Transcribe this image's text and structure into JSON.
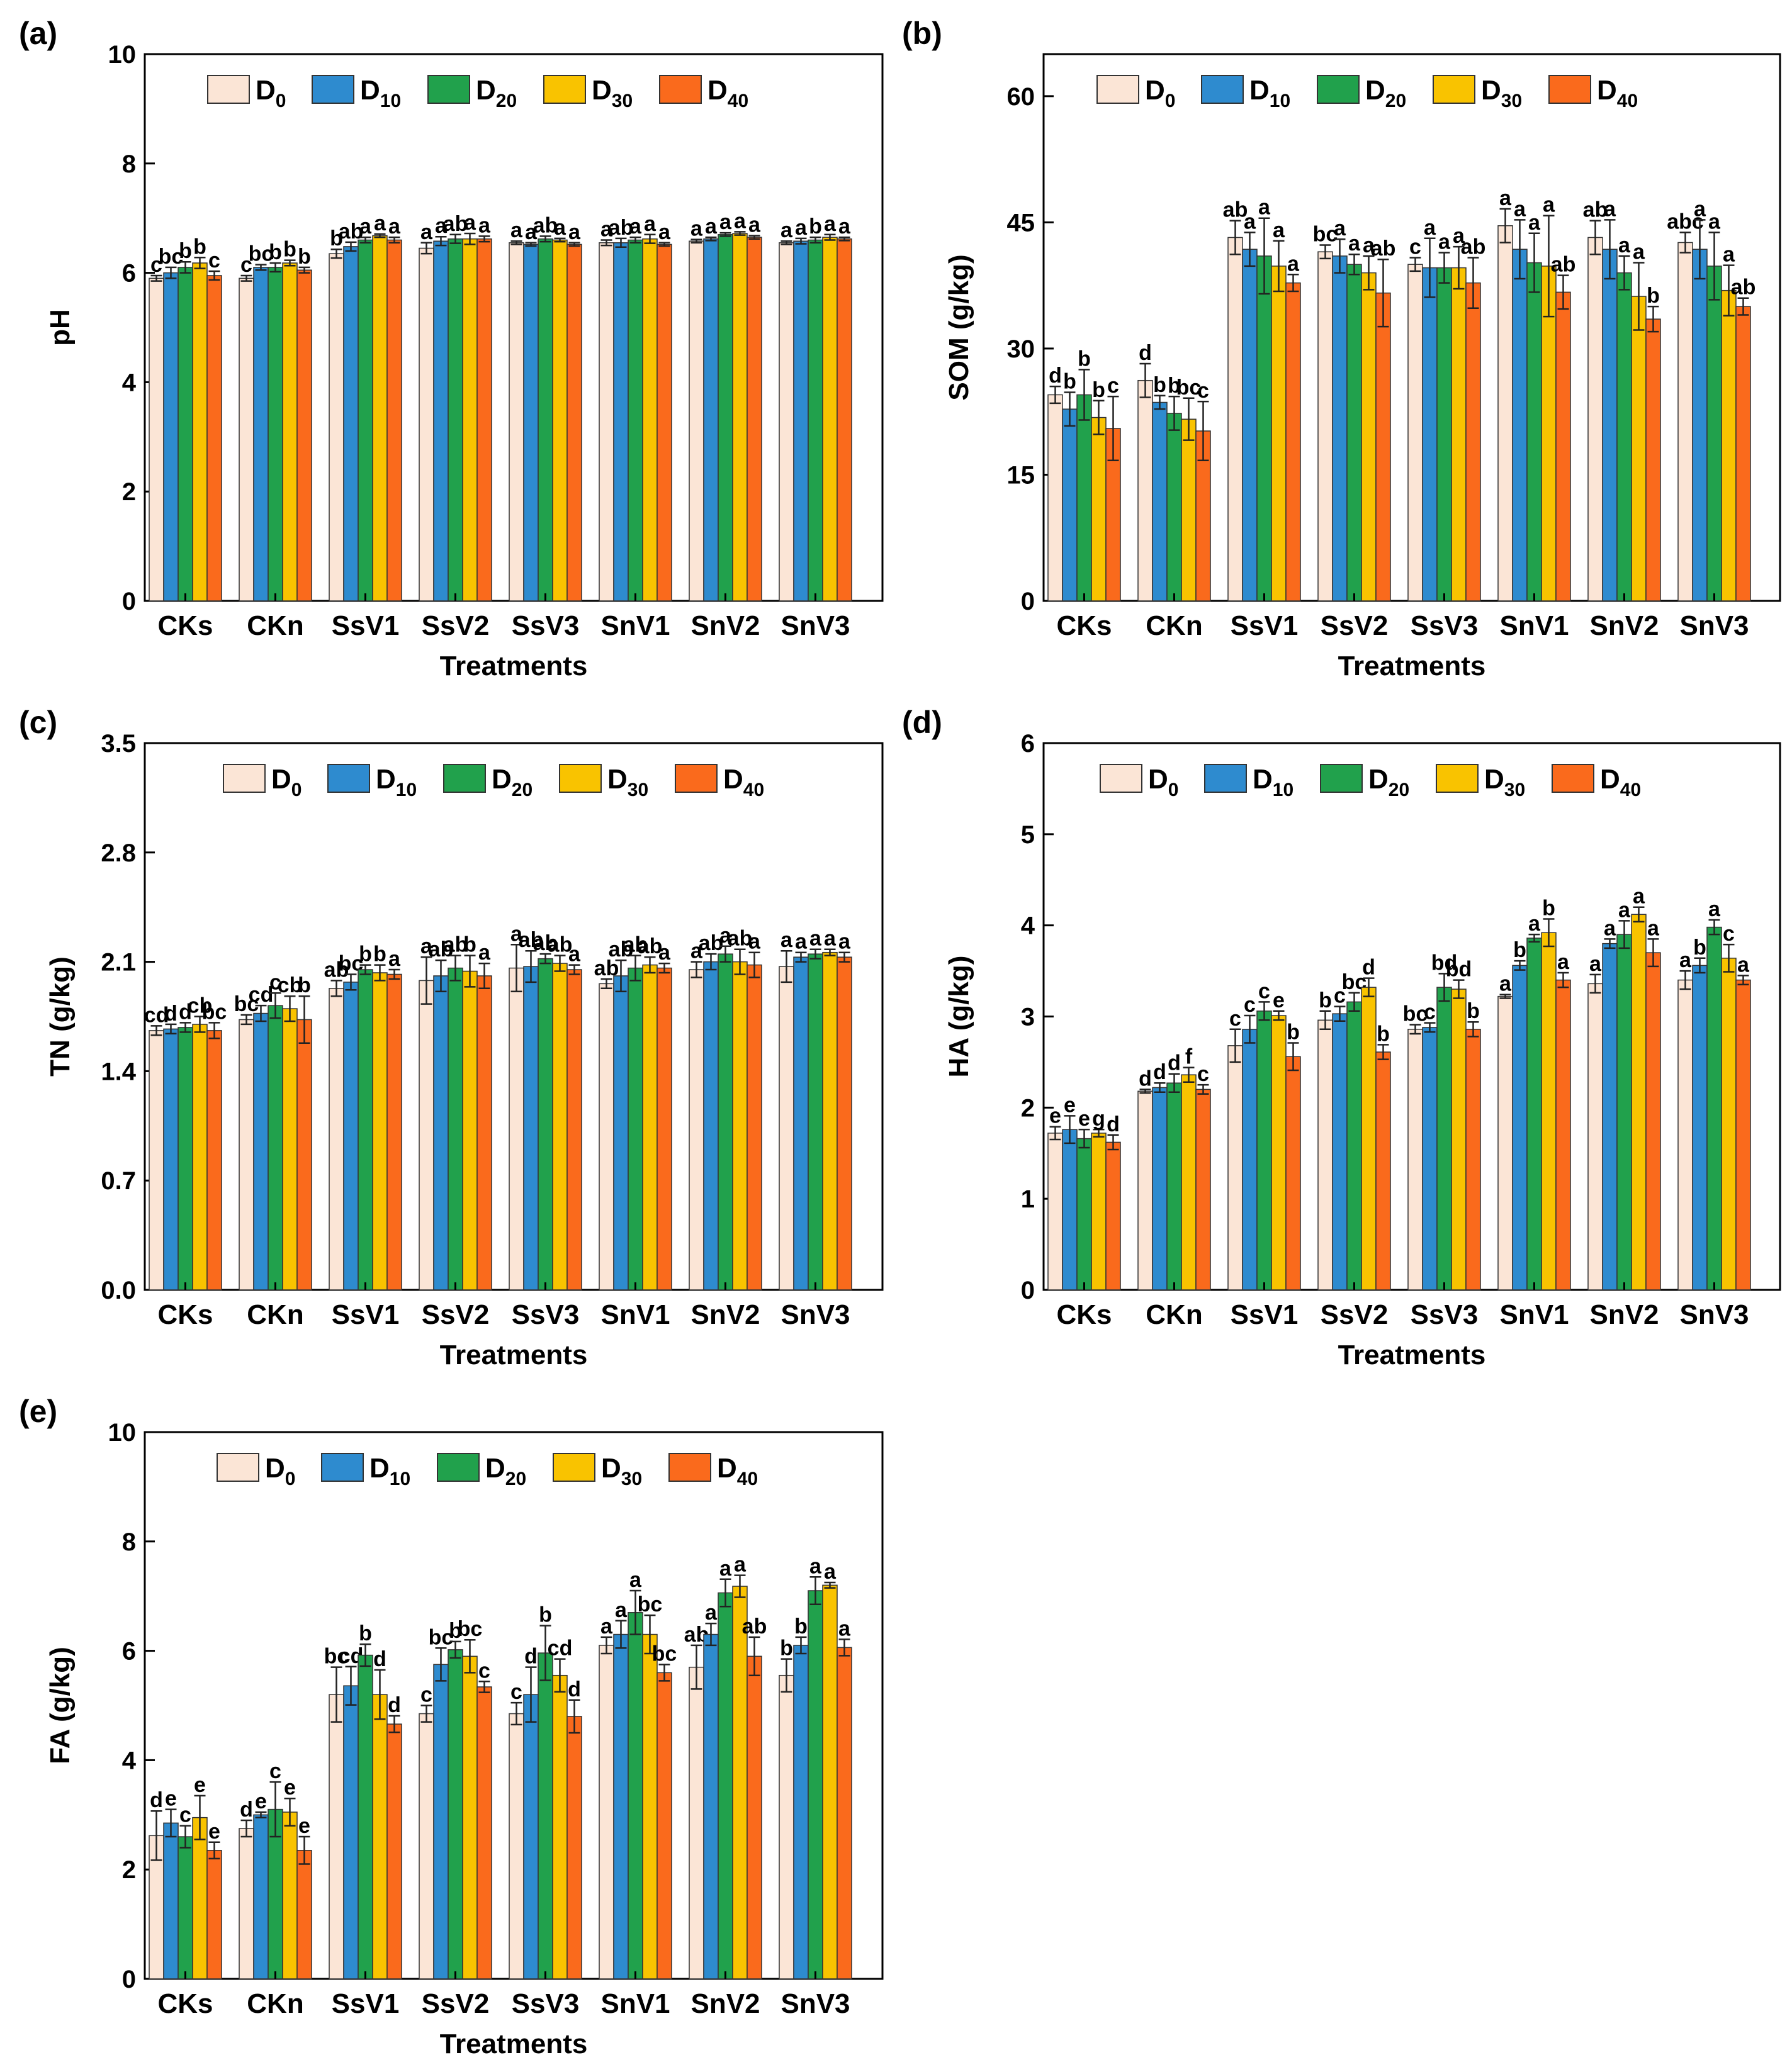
{
  "figure": {
    "categories": [
      "CKs",
      "CKn",
      "SsV1",
      "SsV2",
      "SsV3",
      "SnV1",
      "SnV2",
      "SnV3"
    ],
    "xlabel": "Treatments",
    "legend": [
      {
        "base": "D",
        "sub": "0"
      },
      {
        "base": "D",
        "sub": "10"
      },
      {
        "base": "D",
        "sub": "20"
      },
      {
        "base": "D",
        "sub": "30"
      },
      {
        "base": "D",
        "sub": "40"
      }
    ],
    "colors": [
      "#fbe5d6",
      "#2e8bcf",
      "#21a14c",
      "#f9c300",
      "#fa6a1c"
    ]
  },
  "chart_data": [
    {
      "id": "a",
      "label": "(a)",
      "type": "bar",
      "ylabel": "pH",
      "ylim": [
        0,
        10
      ],
      "yticks": [
        "0",
        "2",
        "4",
        "6",
        "8",
        "10"
      ],
      "series": [
        {
          "name": "D0",
          "values": [
            5.9,
            5.9,
            6.35,
            6.45,
            6.55,
            6.55,
            6.58,
            6.55
          ],
          "errors": [
            0.05,
            0.05,
            0.08,
            0.1,
            0.03,
            0.05,
            0.03,
            0.03
          ]
        },
        {
          "name": "D10",
          "values": [
            6.0,
            6.1,
            6.48,
            6.58,
            6.52,
            6.55,
            6.62,
            6.58
          ],
          "errors": [
            0.1,
            0.05,
            0.08,
            0.08,
            0.03,
            0.08,
            0.03,
            0.05
          ]
        },
        {
          "name": "D20",
          "values": [
            6.1,
            6.1,
            6.6,
            6.62,
            6.62,
            6.6,
            6.7,
            6.6
          ],
          "errors": [
            0.1,
            0.08,
            0.05,
            0.08,
            0.05,
            0.05,
            0.03,
            0.05
          ]
        },
        {
          "name": "D30",
          "values": [
            6.18,
            6.18,
            6.68,
            6.62,
            6.6,
            6.62,
            6.72,
            6.65
          ],
          "errors": [
            0.1,
            0.05,
            0.03,
            0.1,
            0.03,
            0.08,
            0.03,
            0.05
          ]
        },
        {
          "name": "D40",
          "values": [
            5.95,
            6.05,
            6.6,
            6.62,
            6.52,
            6.52,
            6.65,
            6.62
          ],
          "errors": [
            0.08,
            0.05,
            0.05,
            0.05,
            0.03,
            0.03,
            0.03,
            0.03
          ]
        }
      ],
      "letters": [
        [
          "c",
          "c",
          "b",
          "a",
          "a",
          "a",
          "a",
          "a"
        ],
        [
          "bc",
          "bc",
          "ab",
          "a",
          "a",
          "ab",
          "a",
          "a"
        ],
        [
          "b",
          "b",
          "a",
          "ab",
          "ab",
          "a",
          "a",
          "b"
        ],
        [
          "b",
          "b",
          "a",
          "a",
          "a",
          "a",
          "a",
          "a"
        ],
        [
          "c",
          "b",
          "a",
          "a",
          "a",
          "a",
          "a",
          "a"
        ]
      ]
    },
    {
      "id": "b",
      "label": "(b)",
      "type": "bar",
      "ylabel": "SOM (g/kg)",
      "ylim": [
        0,
        65
      ],
      "yticks": [
        "0",
        "15",
        "30",
        "45",
        "60"
      ],
      "series": [
        {
          "name": "D0",
          "values": [
            24.5,
            26.2,
            43.2,
            41.5,
            40.0,
            44.6,
            43.2,
            42.6
          ],
          "errors": [
            1.0,
            2.0,
            2.0,
            0.8,
            0.8,
            2.0,
            2.0,
            1.2
          ]
        },
        {
          "name": "D10",
          "values": [
            22.8,
            23.6,
            41.8,
            41.0,
            39.6,
            41.8,
            41.8,
            41.8
          ],
          "errors": [
            2.0,
            0.8,
            2.0,
            2.0,
            3.5,
            3.5,
            3.5,
            3.5
          ]
        },
        {
          "name": "D20",
          "values": [
            24.5,
            22.3,
            41.0,
            40.0,
            39.6,
            40.2,
            39.0,
            39.8
          ],
          "errors": [
            3.0,
            2.0,
            4.5,
            1.2,
            1.8,
            3.5,
            2.0,
            4.0
          ]
        },
        {
          "name": "D30",
          "values": [
            21.8,
            21.6,
            39.8,
            39.0,
            39.6,
            39.8,
            36.2,
            36.9
          ],
          "errors": [
            2.0,
            2.5,
            3.0,
            2.0,
            2.5,
            6.0,
            4.0,
            3.0
          ]
        },
        {
          "name": "D40",
          "values": [
            20.5,
            20.2,
            37.8,
            36.6,
            37.8,
            36.7,
            33.5,
            35.0
          ],
          "errors": [
            3.8,
            3.5,
            1.0,
            4.0,
            3.0,
            2.0,
            1.5,
            1.0
          ]
        }
      ],
      "letters": [
        [
          "d",
          "d",
          "ab",
          "bc",
          "c",
          "a",
          "ab",
          "abc"
        ],
        [
          "b",
          "b",
          "a",
          "a",
          "a",
          "a",
          "a",
          "a"
        ],
        [
          "b",
          "b",
          "a",
          "a",
          "a",
          "a",
          "a",
          "a"
        ],
        [
          "b",
          "bc",
          "a",
          "a",
          "a",
          "a",
          "a",
          "a"
        ],
        [
          "c",
          "c",
          "a",
          "ab",
          "ab",
          "ab",
          "b",
          "ab"
        ]
      ]
    },
    {
      "id": "c",
      "label": "(c)",
      "type": "bar",
      "ylabel": "TN (g/kg)",
      "ylim": [
        0,
        3.5
      ],
      "yticks": [
        "0.0",
        "0.7",
        "1.4",
        "2.1",
        "2.8",
        "3.5"
      ],
      "series": [
        {
          "name": "D0",
          "values": [
            1.66,
            1.73,
            1.93,
            1.98,
            2.06,
            1.96,
            2.05,
            2.07
          ],
          "errors": [
            0.03,
            0.03,
            0.05,
            0.15,
            0.15,
            0.03,
            0.05,
            0.1
          ]
        },
        {
          "name": "D10",
          "values": [
            1.67,
            1.77,
            1.97,
            2.01,
            2.07,
            2.01,
            2.1,
            2.13
          ],
          "errors": [
            0.03,
            0.05,
            0.05,
            0.1,
            0.1,
            0.1,
            0.05,
            0.03
          ]
        },
        {
          "name": "D20",
          "values": [
            1.68,
            1.82,
            2.05,
            2.06,
            2.12,
            2.06,
            2.15,
            2.15
          ],
          "errors": [
            0.03,
            0.08,
            0.03,
            0.08,
            0.03,
            0.08,
            0.05,
            0.03
          ]
        },
        {
          "name": "D30",
          "values": [
            1.7,
            1.8,
            2.03,
            2.04,
            2.09,
            2.08,
            2.1,
            2.16
          ],
          "errors": [
            0.05,
            0.08,
            0.05,
            0.1,
            0.05,
            0.05,
            0.08,
            0.02
          ]
        },
        {
          "name": "D40",
          "values": [
            1.66,
            1.73,
            2.02,
            2.01,
            2.05,
            2.06,
            2.08,
            2.13
          ],
          "errors": [
            0.05,
            0.15,
            0.03,
            0.08,
            0.03,
            0.03,
            0.08,
            0.03
          ]
        }
      ],
      "letters": [
        [
          "cd",
          "bc",
          "ab",
          "a",
          "a",
          "ab",
          "a",
          "a"
        ],
        [
          "d",
          "cd",
          "bc",
          "ab",
          "ab",
          "ab",
          "ab",
          "a"
        ],
        [
          "d",
          "c",
          "b",
          "ab",
          "ab",
          "ab",
          "a",
          "a"
        ],
        [
          "cb",
          "cb",
          "b",
          "b",
          "ab",
          "ab",
          "ab",
          "a"
        ],
        [
          "bc",
          "b",
          "a",
          "a",
          "a",
          "a",
          "a",
          "a"
        ]
      ]
    },
    {
      "id": "d",
      "label": "(d)",
      "type": "bar",
      "ylabel": "HA (g/kg)",
      "ylim": [
        0,
        6
      ],
      "yticks": [
        "0",
        "1",
        "2",
        "3",
        "4",
        "5",
        "6"
      ],
      "series": [
        {
          "name": "D0",
          "values": [
            1.72,
            2.18,
            2.68,
            2.96,
            2.86,
            3.22,
            3.36,
            3.4
          ],
          "errors": [
            0.07,
            0.02,
            0.18,
            0.1,
            0.05,
            0.02,
            0.1,
            0.1
          ]
        },
        {
          "name": "D10",
          "values": [
            1.76,
            2.22,
            2.86,
            3.03,
            2.88,
            3.56,
            3.8,
            3.56
          ],
          "errors": [
            0.15,
            0.05,
            0.15,
            0.08,
            0.05,
            0.05,
            0.05,
            0.08
          ]
        },
        {
          "name": "D20",
          "values": [
            1.66,
            2.27,
            3.06,
            3.16,
            3.32,
            3.86,
            3.9,
            3.98
          ],
          "errors": [
            0.1,
            0.1,
            0.1,
            0.1,
            0.15,
            0.04,
            0.15,
            0.08
          ]
        },
        {
          "name": "D30",
          "values": [
            1.72,
            2.36,
            3.01,
            3.32,
            3.3,
            3.92,
            4.12,
            3.64
          ],
          "errors": [
            0.04,
            0.08,
            0.05,
            0.1,
            0.1,
            0.15,
            0.08,
            0.15
          ]
        },
        {
          "name": "D40",
          "values": [
            1.62,
            2.2,
            2.56,
            2.61,
            2.86,
            3.4,
            3.7,
            3.4
          ],
          "errors": [
            0.08,
            0.05,
            0.15,
            0.08,
            0.08,
            0.08,
            0.15,
            0.05
          ]
        }
      ],
      "letters": [
        [
          "e",
          "d",
          "c",
          "b",
          "bc",
          "a",
          "a",
          "a"
        ],
        [
          "e",
          "d",
          "c",
          "c",
          "c",
          "b",
          "a",
          "b"
        ],
        [
          "e",
          "d",
          "c",
          "bc",
          "bd",
          "a",
          "a",
          "a"
        ],
        [
          "g",
          "f",
          "e",
          "d",
          "bd",
          "b",
          "a",
          "c"
        ],
        [
          "d",
          "c",
          "b",
          "b",
          "b",
          "a",
          "a",
          "a"
        ]
      ]
    },
    {
      "id": "e",
      "label": "(e)",
      "type": "bar",
      "ylabel": "FA (g/kg)",
      "ylim": [
        0,
        10
      ],
      "yticks": [
        "0",
        "2",
        "4",
        "6",
        "8",
        "10"
      ],
      "series": [
        {
          "name": "D0",
          "values": [
            2.62,
            2.75,
            5.2,
            4.85,
            4.85,
            6.1,
            5.7,
            5.55
          ],
          "errors": [
            0.45,
            0.15,
            0.5,
            0.15,
            0.2,
            0.15,
            0.4,
            0.3
          ]
        },
        {
          "name": "D10",
          "values": [
            2.85,
            3.0,
            5.36,
            5.75,
            5.2,
            6.3,
            6.3,
            6.1
          ],
          "errors": [
            0.25,
            0.05,
            0.35,
            0.3,
            0.5,
            0.25,
            0.2,
            0.15
          ]
        },
        {
          "name": "D20",
          "values": [
            2.6,
            3.1,
            5.92,
            6.02,
            5.96,
            6.7,
            7.06,
            7.1
          ],
          "errors": [
            0.2,
            0.5,
            0.2,
            0.15,
            0.5,
            0.4,
            0.25,
            0.25
          ]
        },
        {
          "name": "D30",
          "values": [
            2.95,
            3.05,
            5.2,
            5.9,
            5.55,
            6.3,
            7.18,
            7.2
          ],
          "errors": [
            0.4,
            0.25,
            0.45,
            0.3,
            0.3,
            0.35,
            0.2,
            0.05
          ]
        },
        {
          "name": "D40",
          "values": [
            2.35,
            2.35,
            4.66,
            5.34,
            4.8,
            5.6,
            5.9,
            6.06
          ],
          "errors": [
            0.15,
            0.25,
            0.15,
            0.1,
            0.3,
            0.15,
            0.35,
            0.15
          ]
        }
      ],
      "letters": [
        [
          "d",
          "d",
          "bc",
          "c",
          "c",
          "a",
          "ab",
          "b"
        ],
        [
          "e",
          "e",
          "cd",
          "bc",
          "d",
          "a",
          "a",
          "b"
        ],
        [
          "c",
          "c",
          "b",
          "b",
          "b",
          "a",
          "a",
          "a"
        ],
        [
          "e",
          "e",
          "d",
          "bc",
          "cd",
          "bc",
          "a",
          "a"
        ],
        [
          "e",
          "e",
          "d",
          "c",
          "d",
          "bc",
          "ab",
          "a"
        ]
      ]
    }
  ]
}
